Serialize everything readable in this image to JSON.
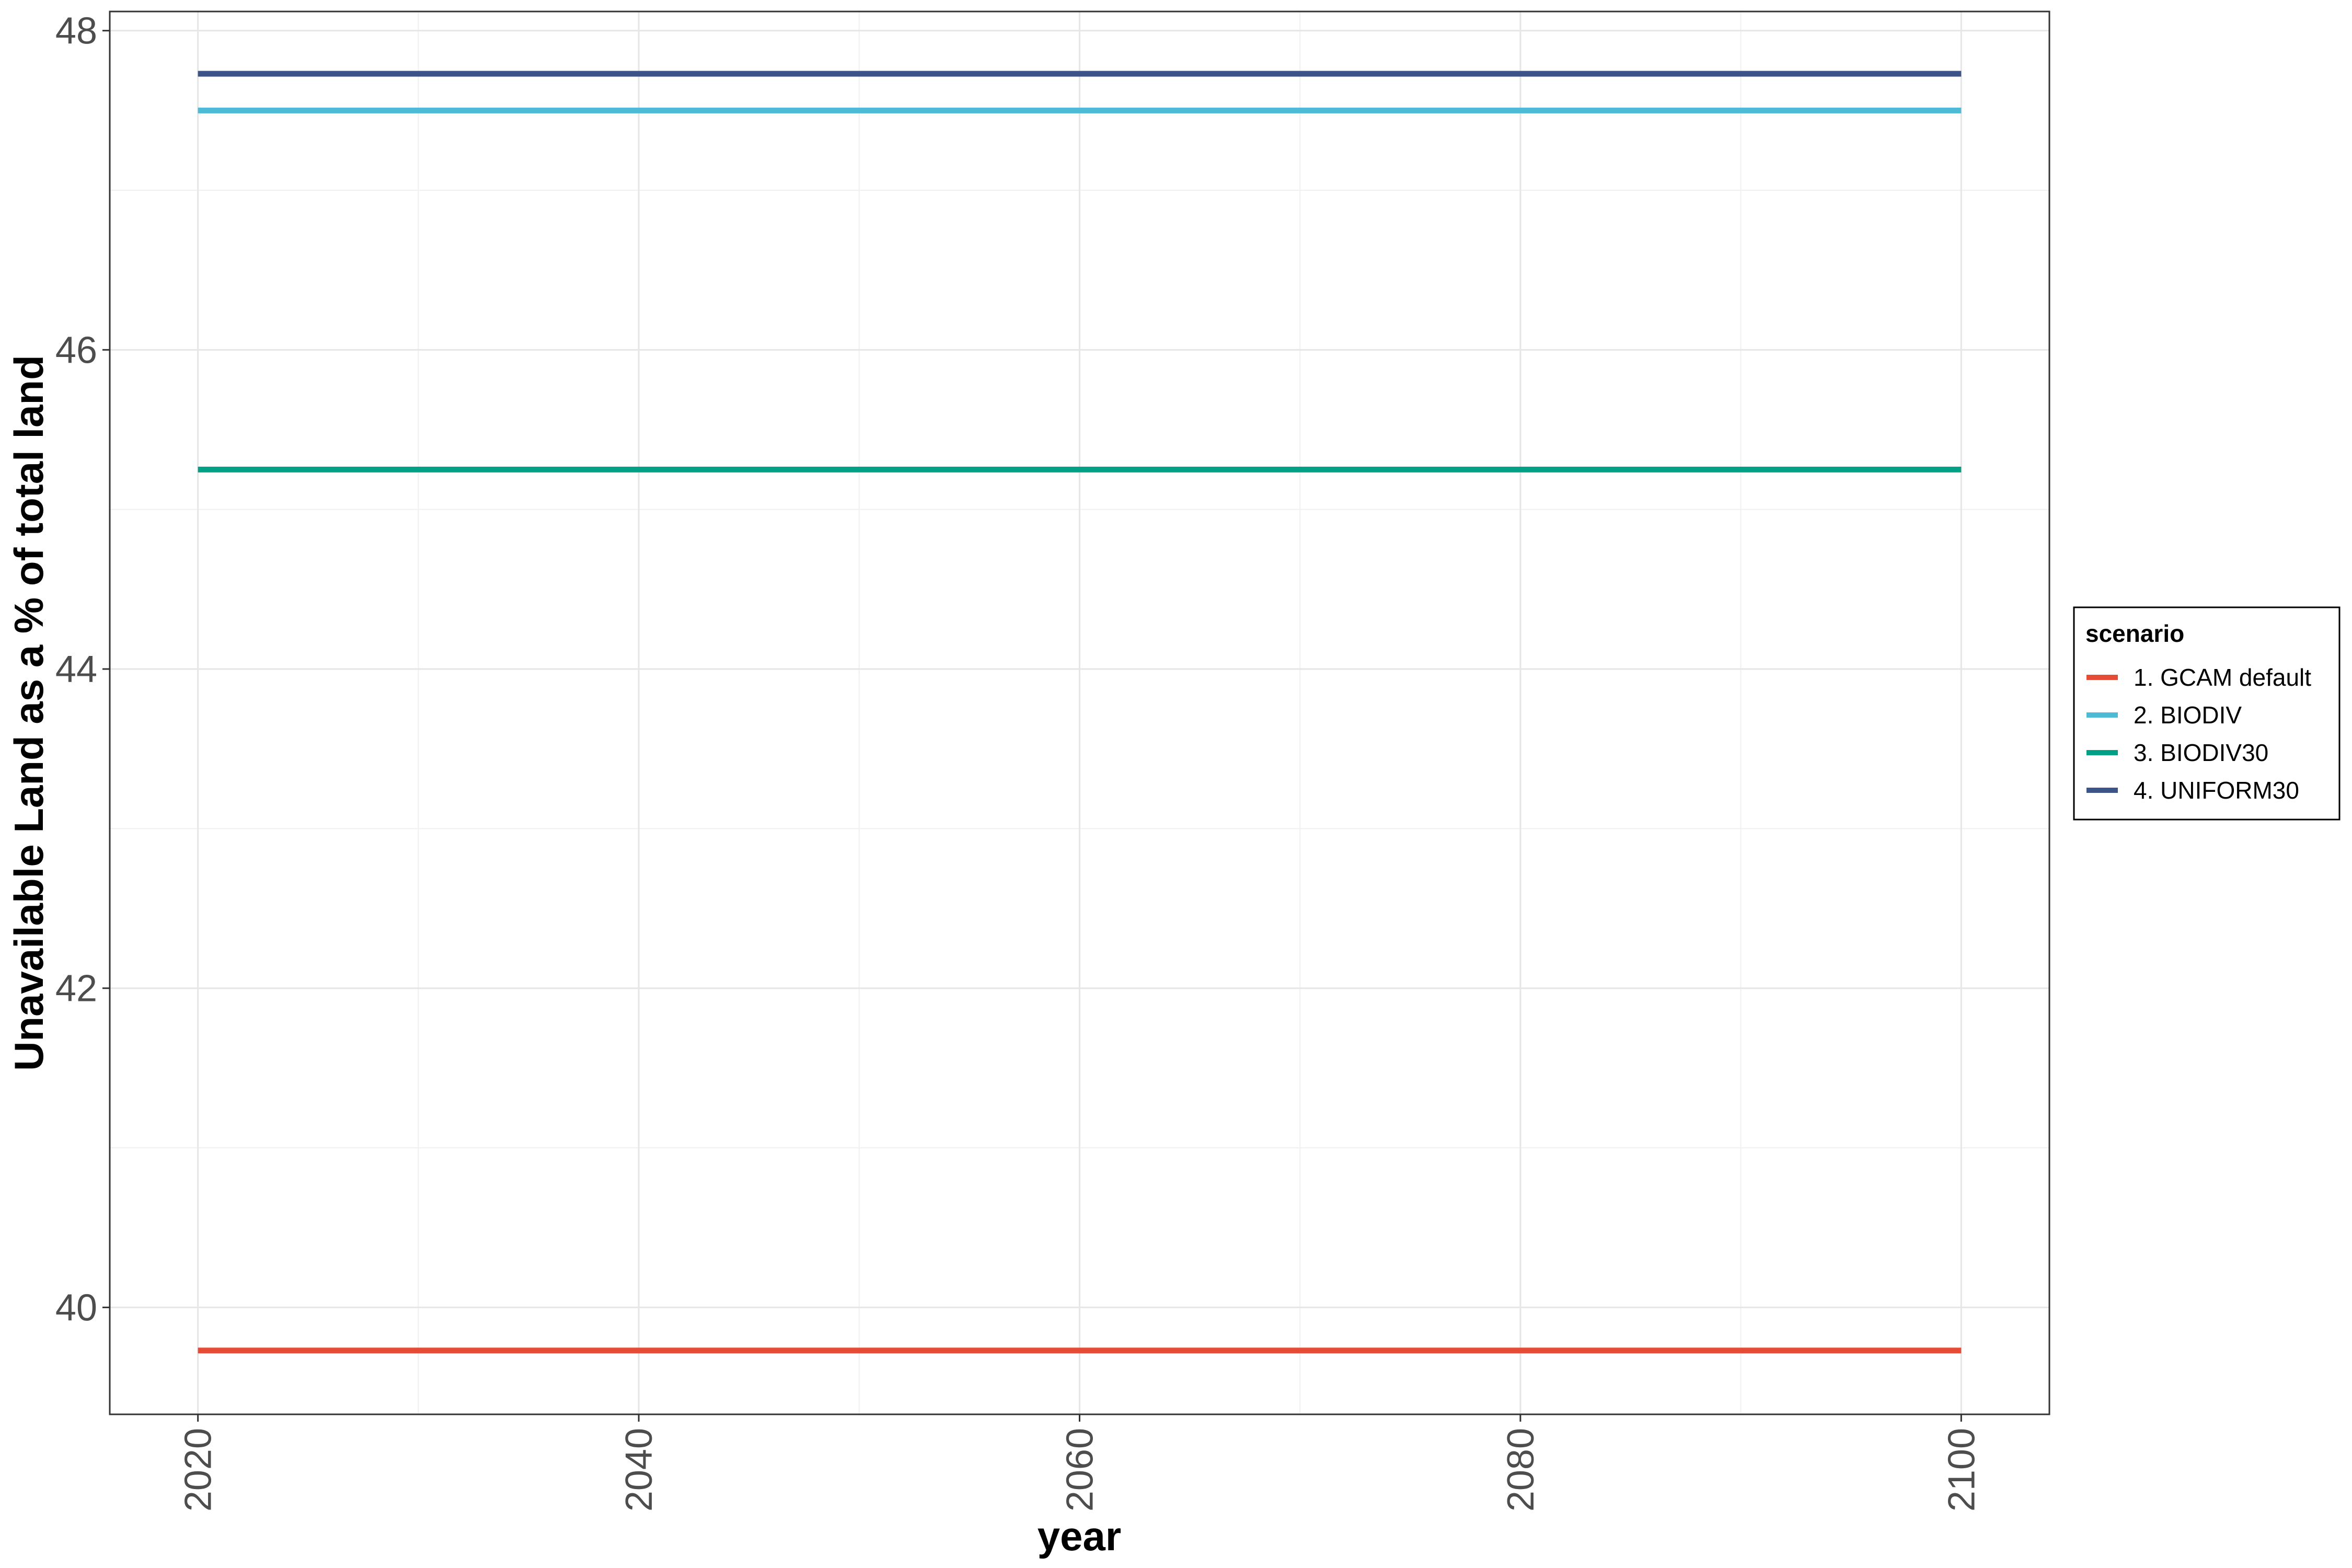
{
  "chart_data": {
    "type": "line",
    "title": "",
    "xlabel": "year",
    "ylabel": "Unavailable Land as a % of total land",
    "x": [
      2020,
      2030,
      2040,
      2050,
      2060,
      2070,
      2080,
      2090,
      2100
    ],
    "xlim": [
      2016,
      2104
    ],
    "ylim": [
      39.33,
      48.12
    ],
    "x_ticks": [
      2020,
      2040,
      2060,
      2080,
      2100
    ],
    "y_ticks": [
      40,
      42,
      44,
      46,
      48
    ],
    "grid": true,
    "legend_title": "scenario",
    "legend_position": "right",
    "series": [
      {
        "name": "1. GCAM default",
        "color": "#E64B35",
        "values": [
          39.73,
          39.73,
          39.73,
          39.73,
          39.73,
          39.73,
          39.73,
          39.73,
          39.73
        ]
      },
      {
        "name": "2. BIODIV",
        "color": "#4DBBD5",
        "values": [
          47.5,
          47.5,
          47.5,
          47.5,
          47.5,
          47.5,
          47.5,
          47.5,
          47.5
        ]
      },
      {
        "name": "3. BIODIV30",
        "color": "#00A087",
        "values": [
          45.25,
          45.25,
          45.25,
          45.25,
          45.25,
          45.25,
          45.25,
          45.25,
          45.25
        ]
      },
      {
        "name": "4. UNIFORM30",
        "color": "#3C5488",
        "values": [
          47.73,
          47.73,
          47.73,
          47.73,
          47.73,
          47.73,
          47.73,
          47.73,
          47.73
        ]
      }
    ]
  }
}
